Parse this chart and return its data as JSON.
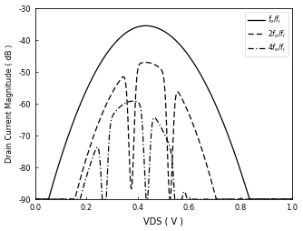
{
  "xlabel": "VDS ( V )",
  "ylabel": "Drain Current Magnitude ( dB )",
  "xlim": [
    0.0,
    1.0
  ],
  "ylim": [
    -90,
    -30
  ],
  "yticks": [
    -90,
    -80,
    -70,
    -60,
    -50,
    -40,
    -30
  ],
  "xticks": [
    0.0,
    0.2,
    0.4,
    0.6,
    0.8,
    1.0
  ],
  "legend_labels": [
    "$f_o/f_i$",
    "$2f_o/f_i$",
    "$4f_o/f_i$"
  ],
  "background_color": "#ffffff",
  "line_color": "#000000",
  "figsize": [
    3.34,
    2.54
  ],
  "dpi": 100
}
